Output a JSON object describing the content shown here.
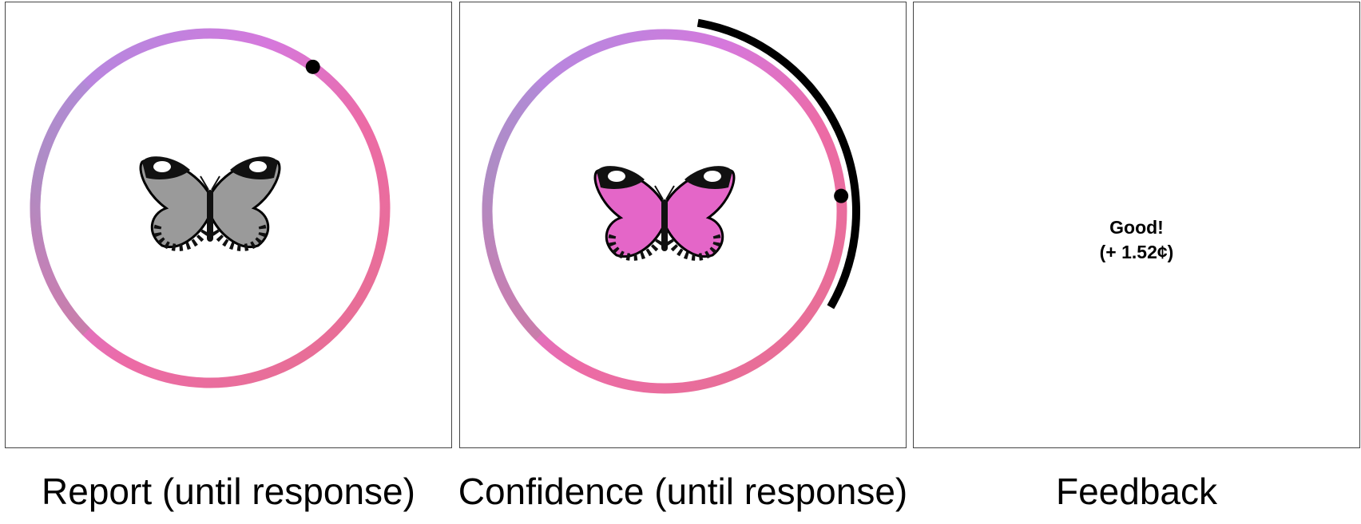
{
  "panels": [
    {
      "id": "report",
      "caption": "Report (until response)",
      "butterfly_wing_color": "#9a9a9a",
      "response_angle_deg": 54
    },
    {
      "id": "confidence",
      "caption": "Confidence (until response)",
      "butterfly_wing_color": "#e466c8",
      "response_angle_deg": 40,
      "confidence_arc_deg": [
        -20,
        105
      ]
    },
    {
      "id": "feedback",
      "caption": "Feedback",
      "feedback_line_1": "Good!",
      "feedback_line_2": "(+ 1.52¢)"
    }
  ],
  "color_wheel": {
    "gradient_stops": [
      "#b98be2",
      "#dd78d3",
      "#ea6cae",
      "#dc7d92",
      "#b58fa6",
      "#a98ad8"
    ]
  },
  "icons": [
    "butterfly-icon",
    "response-marker-icon"
  ]
}
